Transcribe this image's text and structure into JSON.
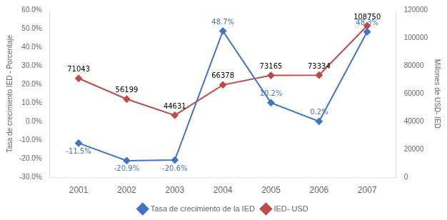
{
  "chart_data": {
    "type": "line",
    "x": [
      2001,
      2002,
      2003,
      2004,
      2005,
      2006,
      2007
    ],
    "xlim": [
      2000.4,
      2007.6
    ],
    "xticks": [
      2001,
      2002,
      2003,
      2004,
      2005,
      2006,
      2007
    ],
    "ylim": [
      -30.0,
      60.0
    ],
    "yticks": [
      {
        "value": -30,
        "label": "-30.0%"
      },
      {
        "value": -20,
        "label": "-20.0%"
      },
      {
        "value": -10,
        "label": "-10.0%"
      },
      {
        "value": 0,
        "label": "0.0%"
      },
      {
        "value": 10,
        "label": "10.0%"
      },
      {
        "value": 20,
        "label": "20.0%"
      },
      {
        "value": 30,
        "label": "30.0%"
      },
      {
        "value": 40,
        "label": "40.0%"
      },
      {
        "value": 50,
        "label": "50.0%"
      },
      {
        "value": 60,
        "label": "60.0%"
      }
    ],
    "y2lim": [
      0,
      120000
    ],
    "y2ticks": [
      0,
      20000,
      40000,
      60000,
      80000,
      100000,
      120000
    ],
    "ylabel": "Tasa de crecimiento IED - Porcentaje",
    "y2label": "Millones de USD- IED",
    "series": [
      {
        "name": "Tasa de crecimiento de la IED",
        "color": "#4472C4",
        "marker": "diamond",
        "values": [
          -11.5,
          -20.9,
          -20.6,
          48.7,
          10.2,
          0.2,
          48.3
        ],
        "value_labels": [
          "-11.5%",
          "-20.9%",
          "-20.6%",
          "48.7%",
          "10.2%",
          "0.2%",
          "48.3%"
        ]
      },
      {
        "name": "IED- USD",
        "color": "#BE4B48",
        "marker": "diamond",
        "axis": "y2",
        "values": [
          71043,
          56199,
          44631,
          66378,
          73165,
          73334,
          108750
        ]
      }
    ],
    "data_labels": true,
    "grid": false,
    "legend": "bottom"
  }
}
